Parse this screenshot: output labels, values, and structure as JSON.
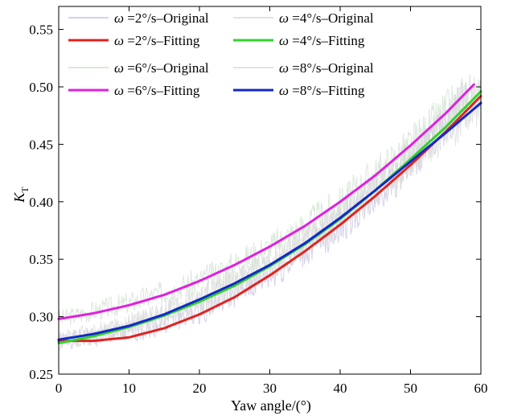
{
  "chart_data": {
    "type": "line",
    "title": "",
    "xlabel": "Yaw angle/(°)",
    "ylabel": "K_T",
    "ylabel_main": "K",
    "ylabel_sub": "T",
    "xlim": [
      0,
      60
    ],
    "ylim": [
      0.25,
      0.57
    ],
    "xticks": [
      "0",
      "10",
      "20",
      "30",
      "40",
      "50",
      "60"
    ],
    "yticks": [
      "0.25",
      "0.30",
      "0.35",
      "0.40",
      "0.45",
      "0.50",
      "0.55"
    ],
    "legend_position": "top",
    "omega_symbol": "ω",
    "series": [
      {
        "name": "ω =2°/s–Original",
        "symbol": "ω",
        "rest": " =2°/s–Original",
        "kind": "original",
        "color": "#c9c3e0",
        "seed": 1,
        "x": [
          0,
          10,
          20,
          30,
          40,
          50,
          58
        ],
        "y": [
          0.279,
          0.286,
          0.305,
          0.335,
          0.378,
          0.432,
          0.49
        ]
      },
      {
        "name": "ω =4°/s–Original",
        "symbol": "ω",
        "rest": " =4°/s–Original",
        "kind": "original",
        "color": "#d8d8d8",
        "seed": 2,
        "x": [
          0,
          10,
          20,
          30,
          40,
          50,
          60
        ],
        "y": [
          0.277,
          0.292,
          0.314,
          0.344,
          0.386,
          0.438,
          0.496
        ]
      },
      {
        "name": "ω =6°/s–Original",
        "symbol": "ω",
        "rest": " =6°/s–Original",
        "kind": "original",
        "color": "#cfe0cf",
        "seed": 3,
        "x": [
          0,
          10,
          20,
          30,
          40,
          50,
          59
        ],
        "y": [
          0.298,
          0.312,
          0.331,
          0.36,
          0.398,
          0.449,
          0.502
        ]
      },
      {
        "name": "ω =8°/s–Original",
        "symbol": "ω",
        "rest": " =8°/s–Original",
        "kind": "original",
        "color": "#dcdcdc",
        "seed": 4,
        "x": [
          0,
          10,
          20,
          30,
          40,
          50,
          60
        ],
        "y": [
          0.28,
          0.293,
          0.315,
          0.345,
          0.386,
          0.435,
          0.486
        ]
      },
      {
        "name": "ω =2°/s–Fitting",
        "symbol": "ω",
        "rest": " =2°/s–Fitting",
        "kind": "fit",
        "color": "#e0231f",
        "x": [
          0,
          5,
          10,
          15,
          20,
          25,
          30,
          35,
          40,
          45,
          50,
          55,
          60
        ],
        "y": [
          0.279,
          0.279,
          0.282,
          0.29,
          0.302,
          0.317,
          0.336,
          0.357,
          0.38,
          0.405,
          0.432,
          0.461,
          0.492
        ]
      },
      {
        "name": "ω =4°/s–Fitting",
        "symbol": "ω",
        "rest": " =4°/s–Fitting",
        "kind": "fit",
        "color": "#33d12b",
        "x": [
          0,
          5,
          10,
          15,
          20,
          25,
          30,
          35,
          40,
          45,
          50,
          55,
          60
        ],
        "y": [
          0.277,
          0.283,
          0.291,
          0.301,
          0.313,
          0.327,
          0.344,
          0.363,
          0.385,
          0.41,
          0.437,
          0.465,
          0.496
        ]
      },
      {
        "name": "ω =6°/s–Fitting",
        "symbol": "ω",
        "rest": " =6°/s–Fitting",
        "kind": "fit",
        "color": "#e020e0",
        "x": [
          0,
          5,
          10,
          15,
          20,
          25,
          30,
          35,
          40,
          45,
          50,
          55,
          59
        ],
        "y": [
          0.298,
          0.303,
          0.31,
          0.319,
          0.331,
          0.345,
          0.361,
          0.379,
          0.4,
          0.423,
          0.449,
          0.477,
          0.502
        ]
      },
      {
        "name": "ω =8°/s–Fitting",
        "symbol": "ω",
        "rest": " =8°/s–Fitting",
        "kind": "fit",
        "color": "#1428c8",
        "x": [
          0,
          5,
          10,
          15,
          20,
          25,
          30,
          35,
          40,
          45,
          50,
          55,
          60
        ],
        "y": [
          0.28,
          0.285,
          0.292,
          0.302,
          0.315,
          0.329,
          0.345,
          0.364,
          0.386,
          0.41,
          0.435,
          0.46,
          0.486
        ]
      }
    ],
    "legend_order": [
      0,
      1,
      4,
      5,
      2,
      3,
      6,
      7
    ]
  }
}
